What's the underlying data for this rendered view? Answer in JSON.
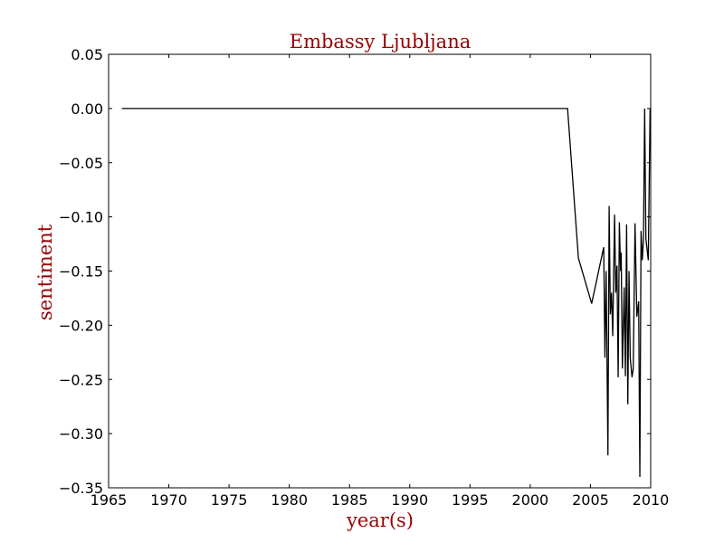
{
  "chart_data": {
    "type": "line",
    "title": "Embassy Ljubljana",
    "xlabel": "year(s)",
    "ylabel": "sentiment",
    "xlim": [
      1965,
      2010
    ],
    "ylim": [
      -0.35,
      0.05
    ],
    "x_ticks": [
      1965,
      1970,
      1975,
      1980,
      1985,
      1990,
      1995,
      2000,
      2005,
      2010
    ],
    "x_tick_labels": [
      "1965",
      "1970",
      "1975",
      "1980",
      "1985",
      "1990",
      "1995",
      "2000",
      "2005",
      "2010"
    ],
    "y_ticks": [
      0.05,
      0.0,
      -0.05,
      -0.1,
      -0.15,
      -0.2,
      -0.25,
      -0.3,
      -0.35
    ],
    "y_tick_labels": [
      "0.05",
      "0.00",
      "−0.05",
      "−0.10",
      "−0.15",
      "−0.20",
      "−0.25",
      "−0.30",
      "−0.35"
    ],
    "grid": false,
    "legend": "none",
    "series": [
      {
        "color": "#000000",
        "x": [
          1966.1,
          2003.1,
          2004.0,
          2005.1,
          2006.1,
          2006.2,
          2006.3,
          2006.45,
          2006.55,
          2006.65,
          2006.75,
          2006.85,
          2007.0,
          2007.1,
          2007.2,
          2007.3,
          2007.4,
          2007.5,
          2007.55,
          2007.65,
          2007.8,
          2007.9,
          2008.0,
          2008.1,
          2008.2,
          2008.3,
          2008.45,
          2008.55,
          2008.7,
          2008.85,
          2009.0,
          2009.1,
          2009.2,
          2009.3,
          2009.4,
          2009.5,
          2009.6,
          2009.8,
          2009.95
        ],
        "y": [
          0.0,
          0.0,
          -0.138,
          -0.18,
          -0.128,
          -0.23,
          -0.15,
          -0.32,
          -0.09,
          -0.19,
          -0.17,
          -0.21,
          -0.098,
          -0.17,
          -0.145,
          -0.248,
          -0.105,
          -0.15,
          -0.133,
          -0.24,
          -0.165,
          -0.247,
          -0.107,
          -0.273,
          -0.15,
          -0.23,
          -0.248,
          -0.24,
          -0.106,
          -0.192,
          -0.178,
          -0.34,
          -0.113,
          -0.14,
          -0.121,
          -0.0,
          -0.12,
          -0.14,
          0.0
        ]
      }
    ]
  },
  "colors": {
    "title": "#990000",
    "axis_label": "#990000",
    "line": "#000000",
    "background": "#ffffff"
  }
}
